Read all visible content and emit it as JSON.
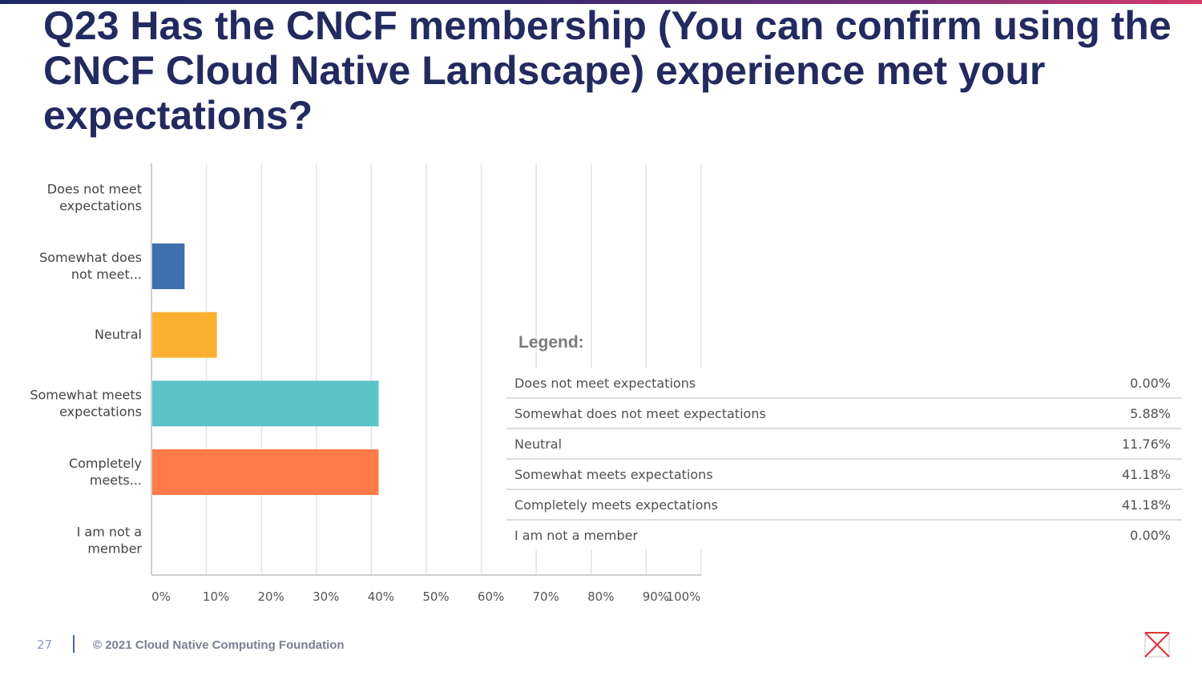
{
  "slide": {
    "title": "Q23 Has the CNCF membership (You can confirm using the CNCF Cloud Native Landscape) experience met your expectations?",
    "footer_page": "27",
    "footer_text": "© 2021 Cloud Native Computing Foundation",
    "logo": "cncf-x-logo-icon"
  },
  "legend": {
    "title": "Legend:",
    "rows": [
      {
        "label": "Does not meet expectations",
        "value": "0.00%"
      },
      {
        "label": "Somewhat does not meet expectations",
        "value": "5.88%"
      },
      {
        "label": "Neutral",
        "value": "11.76%"
      },
      {
        "label": "Somewhat meets expectations",
        "value": "41.18%"
      },
      {
        "label": "Completely meets expectations",
        "value": "41.18%"
      },
      {
        "label": "I am not a member",
        "value": "0.00%"
      }
    ]
  },
  "chart_data": {
    "type": "bar",
    "orientation": "horizontal",
    "categories": [
      [
        "Does not meet",
        "expectations"
      ],
      [
        "Somewhat does",
        "not meet..."
      ],
      [
        "Neutral"
      ],
      [
        "Somewhat meets",
        "expectations"
      ],
      [
        "Completely",
        "meets..."
      ],
      [
        "I am not a",
        "member"
      ]
    ],
    "values": [
      0.0,
      5.88,
      11.76,
      41.18,
      41.18,
      0.0
    ],
    "colors": [
      "#4a7cc0",
      "#3f6fae",
      "#fbb030",
      "#5bc2c7",
      "#ff7b4a",
      "#8bc34a"
    ],
    "xlim": [
      0,
      100
    ],
    "xticks": [
      "0%",
      "10%",
      "20%",
      "30%",
      "40%",
      "50%",
      "60%",
      "70%",
      "80%",
      "90%",
      "100%"
    ],
    "grid": true
  }
}
